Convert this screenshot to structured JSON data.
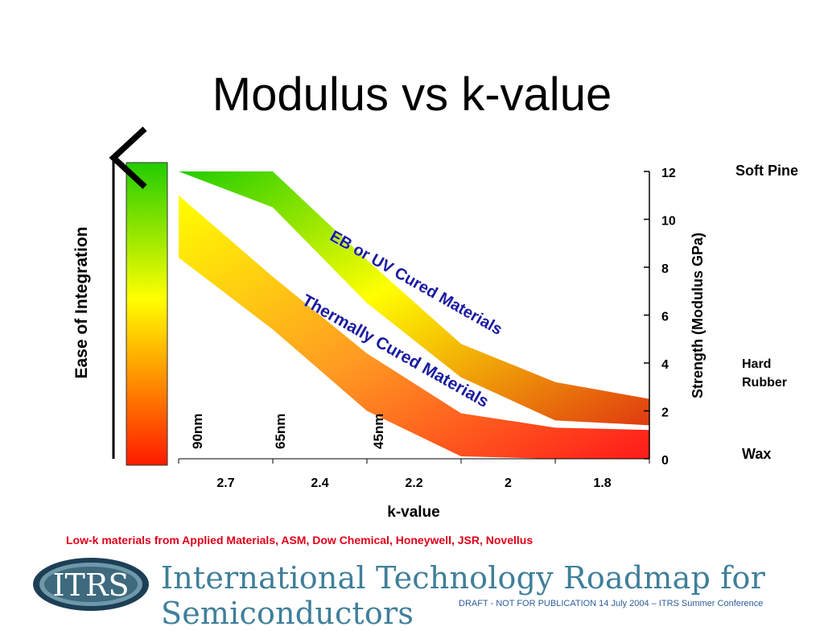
{
  "page": {
    "title": "Modulus vs k-value"
  },
  "chart_data": {
    "type": "area",
    "title": "Modulus vs k-value",
    "xlabel": "k-value",
    "ylabel": "Strength (Modulus GPa)",
    "left_axis_label": "Ease of Integration",
    "x_ticks": [
      "2.7",
      "2.4",
      "2.2",
      "2",
      "1.8"
    ],
    "y_ticks": [
      0,
      2,
      4,
      6,
      8,
      10,
      12
    ],
    "ylim": [
      0,
      12
    ],
    "x_reversed": true,
    "series": [
      {
        "name": "EB or UV Cured Materials",
        "upper": [
          12,
          12,
          8.3,
          4.8,
          3.2,
          2.5
        ],
        "lower": [
          12,
          10.5,
          6.5,
          3.4,
          1.6,
          1.4
        ],
        "colors": [
          "#22cc00",
          "#ffff00",
          "#e03a10"
        ]
      },
      {
        "name": "Thermally Cured Materials",
        "upper": [
          11,
          7.6,
          4.4,
          1.9,
          1.3,
          1.2
        ],
        "lower": [
          8.4,
          5.4,
          2.0,
          0.1,
          0,
          0
        ],
        "colors": [
          "#ffff00",
          "#ff9a22",
          "#ff1a1a"
        ]
      }
    ],
    "node_labels": [
      "90nm",
      "65nm",
      "45nm"
    ],
    "hardness_labels": [
      "Soft Pine",
      "Hard Rubber",
      "Wax"
    ],
    "hardness_label_lines": [
      [
        "Soft Pine"
      ],
      [
        "Hard",
        "Rubber"
      ],
      [
        "Wax"
      ]
    ]
  },
  "footer": {
    "note": "Low-k materials from Applied Materials, ASM, Dow Chemical, Honeywell, JSR, Novellus",
    "logo_text": "ITRS",
    "brand": "International Technology Roadmap for Semiconductors",
    "draft": "DRAFT - NOT FOR PUBLICATION     14 July 2004 – ITRS Summer Conference"
  },
  "colors": {
    "note_red": "#e0001a",
    "brand_teal": "#3f7f9a",
    "label_navy": "#1a1aa0"
  }
}
